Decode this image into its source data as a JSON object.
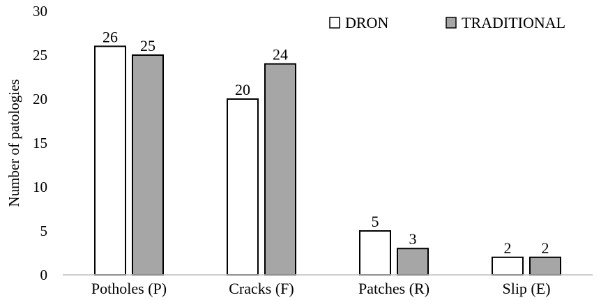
{
  "chart_data": {
    "type": "bar",
    "categories": [
      "Potholes (P)",
      "Cracks (F)",
      "Patches (R)",
      "Slip (E)"
    ],
    "series": [
      {
        "name": "DRON",
        "values": [
          26,
          20,
          5,
          2
        ],
        "color": "#ffffff"
      },
      {
        "name": "TRADITIONAL",
        "values": [
          25,
          24,
          3,
          2
        ],
        "color": "#a6a6a6"
      }
    ],
    "ylabel": "Number of patologies",
    "xlabel": "",
    "ylim": [
      0,
      30
    ],
    "yticks": [
      0,
      5,
      10,
      15,
      20,
      25,
      30
    ],
    "grid": false,
    "legend": "top-right",
    "bar_stroke": "#000000"
  }
}
